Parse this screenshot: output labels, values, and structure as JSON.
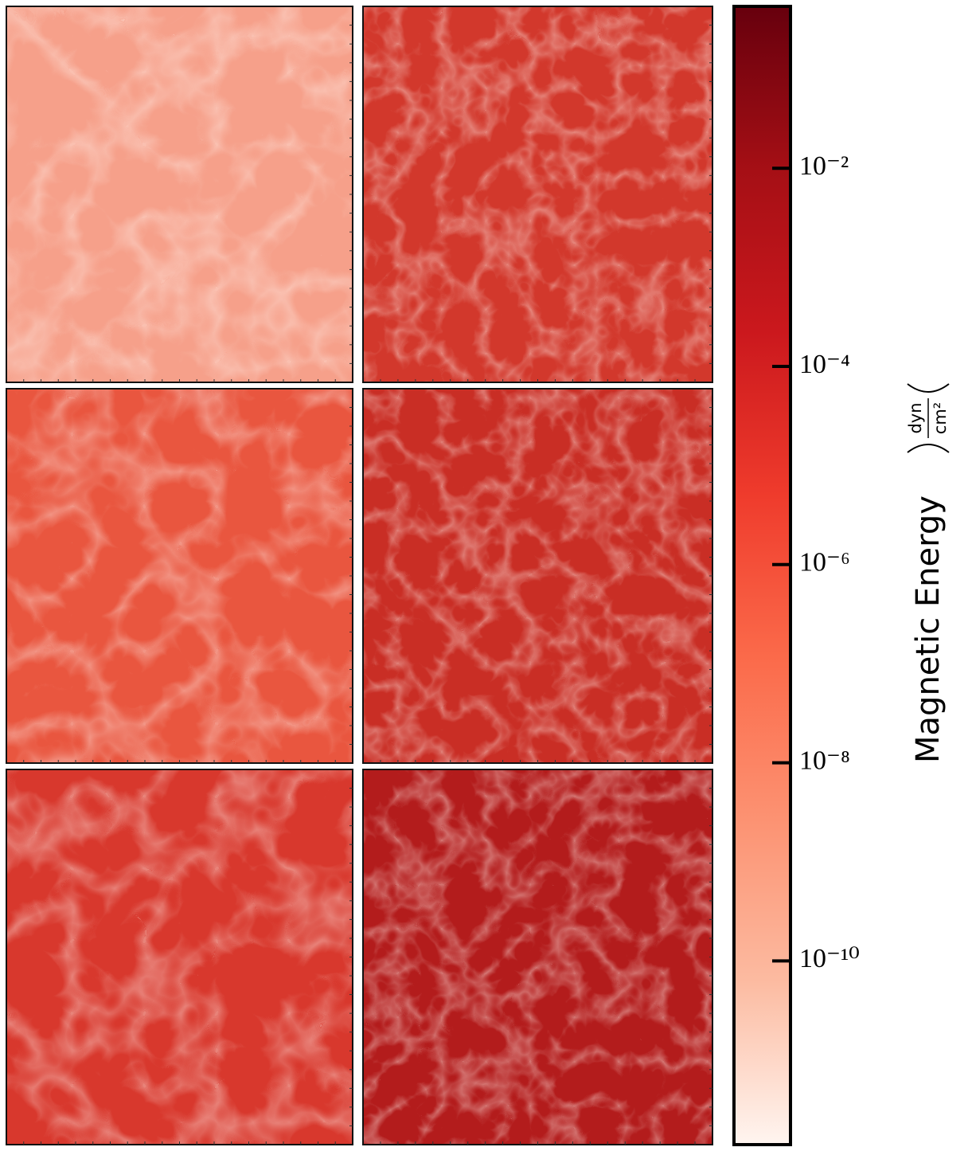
{
  "chart_data": {
    "type": "heatmap",
    "colorbar": {
      "label": "Magnetic Energy",
      "unit_numerator": "dyn",
      "unit_denominator": "cm²",
      "log": true,
      "ylim": [
        1.4e-12,
        0.43
      ],
      "yticks": [
        {
          "value": 0.01,
          "label": "10⁻²"
        },
        {
          "value": 0.0001,
          "label": "10⁻⁴"
        },
        {
          "value": 1e-06,
          "label": "10⁻⁶"
        },
        {
          "value": 1e-08,
          "label": "10⁻⁸"
        },
        {
          "value": 1e-10,
          "label": "10⁻¹⁰"
        }
      ],
      "colormap": [
        "#fff5f0",
        "#fcbba1",
        "#fc9272",
        "#fb6a4a",
        "#ef3b2c",
        "#cb181d",
        "#a50f15",
        "#67000d"
      ]
    }
  }
}
